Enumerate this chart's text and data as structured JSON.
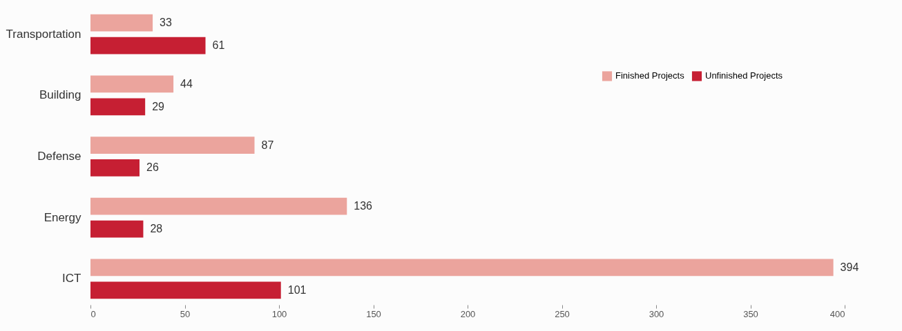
{
  "chart_data": {
    "type": "bar",
    "orientation": "horizontal",
    "categories": [
      "Transportation",
      "Building",
      "Defense",
      "Energy",
      "ICT"
    ],
    "series": [
      {
        "name": "Finished Projects",
        "color": "#eba49d",
        "values": [
          33,
          44,
          87,
          136,
          394
        ]
      },
      {
        "name": "Unfinished Projects",
        "color": "#c61f33",
        "values": [
          61,
          29,
          26,
          28,
          101
        ]
      }
    ],
    "xlim": [
      0,
      400
    ],
    "xticks": [
      0,
      50,
      100,
      150,
      200,
      250,
      300,
      350,
      400
    ],
    "data_labels": true,
    "legend": "top right",
    "grid": false
  }
}
